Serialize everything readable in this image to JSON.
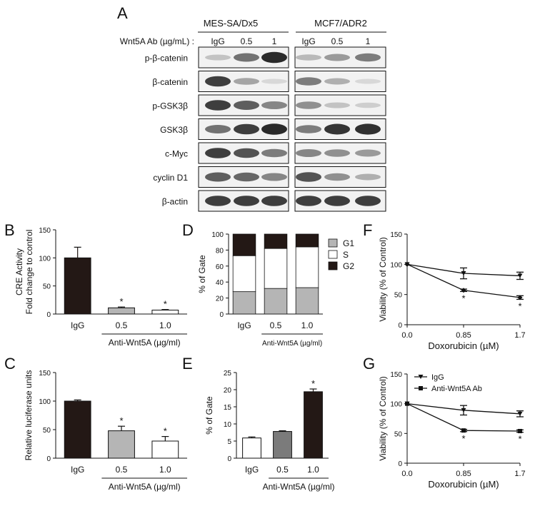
{
  "figure": {
    "panel_labels": {
      "A": "A",
      "B": "B",
      "C": "C",
      "D": "D",
      "E": "E",
      "F": "F",
      "G": "G"
    }
  },
  "western_blot": {
    "cell_lines": [
      "MES-SA/Dx5",
      "MCF7/ADR2"
    ],
    "treatment_label": "Wnt5A Ab (µg/mL) :",
    "lane_labels": [
      "IgG",
      "0.5",
      "1"
    ],
    "proteins": [
      "p-β-catenin",
      "β-catenin",
      "p-GSK3β",
      "GSK3β",
      "c-Myc",
      "cyclin D1",
      "β-actin"
    ],
    "band_intensity": {
      "MES-SA/Dx5": [
        [
          0.2,
          0.6,
          0.95
        ],
        [
          0.85,
          0.35,
          0.1
        ],
        [
          0.85,
          0.7,
          0.5
        ],
        [
          0.6,
          0.85,
          0.95
        ],
        [
          0.85,
          0.75,
          0.55
        ],
        [
          0.7,
          0.65,
          0.5
        ],
        [
          0.85,
          0.85,
          0.85
        ]
      ],
      "MCF7/ADR2": [
        [
          0.25,
          0.4,
          0.55
        ],
        [
          0.55,
          0.3,
          0.1
        ],
        [
          0.45,
          0.2,
          0.15
        ],
        [
          0.55,
          0.9,
          0.92
        ],
        [
          0.5,
          0.45,
          0.4
        ],
        [
          0.75,
          0.45,
          0.3
        ],
        [
          0.85,
          0.85,
          0.85
        ]
      ]
    }
  },
  "chart_data": [
    {
      "panel": "B",
      "type": "bar",
      "categories": [
        "IgG",
        "0.5",
        "1.0"
      ],
      "values": [
        100,
        11,
        7
      ],
      "errors": [
        19,
        1.5,
        1
      ],
      "significant": [
        false,
        true,
        true
      ],
      "bar_colors": [
        "#231815",
        "#b5b5b5",
        "#ffffff"
      ],
      "ylabel": "CRE Activity\nFold change to control",
      "group_label": "Anti-Wnt5A (µg/ml)",
      "ylim": [
        0,
        150
      ],
      "yticks": [
        0,
        50,
        100,
        150
      ]
    },
    {
      "panel": "C",
      "type": "bar",
      "categories": [
        "IgG",
        "0.5",
        "1.0"
      ],
      "values": [
        100,
        48,
        30
      ],
      "errors": [
        2,
        8,
        8
      ],
      "significant": [
        false,
        true,
        true
      ],
      "bar_colors": [
        "#231815",
        "#b5b5b5",
        "#ffffff"
      ],
      "ylabel": "Relative luciferase units",
      "group_label": "Anti-Wnt5A (µg/ml)",
      "ylim": [
        0,
        150
      ],
      "yticks": [
        0,
        50,
        100,
        150
      ]
    },
    {
      "panel": "D",
      "type": "bar",
      "stacked": true,
      "categories": [
        "IgG",
        "0.5",
        "1.0"
      ],
      "series": [
        {
          "name": "G1",
          "values": [
            28,
            32,
            33
          ],
          "color": "#b5b5b5"
        },
        {
          "name": "S",
          "values": [
            45,
            50,
            51
          ],
          "color": "#ffffff"
        },
        {
          "name": "G2",
          "values": [
            27,
            18,
            16
          ],
          "color": "#231815"
        }
      ],
      "ylabel": "% of Gate",
      "group_label": "Anti-Wnt5A (µg/ml)",
      "ylim": [
        0,
        100
      ],
      "yticks": [
        0,
        20,
        40,
        60,
        80,
        100
      ],
      "legend_position": "right"
    },
    {
      "panel": "E",
      "type": "bar",
      "categories": [
        "IgG",
        "0.5",
        "1.0"
      ],
      "values": [
        5.9,
        7.8,
        19.4
      ],
      "errors": [
        0.3,
        0.2,
        0.8
      ],
      "significant": [
        false,
        false,
        true
      ],
      "bar_colors": [
        "#ffffff",
        "#7b7b7b",
        "#231815"
      ],
      "ylabel": "% of Gate",
      "group_label": "Anti-Wnt5A (µg/ml)",
      "ylim": [
        0,
        25
      ],
      "yticks": [
        0,
        5,
        10,
        15,
        20,
        25
      ]
    },
    {
      "panel": "F",
      "type": "line",
      "x": [
        0.0,
        0.85,
        1.7
      ],
      "xticks": [
        "0.0",
        "0.85",
        "1.7"
      ],
      "series": [
        {
          "name": "",
          "values": [
            100,
            85,
            81
          ],
          "errors": [
            0,
            9,
            6
          ],
          "marker": "triangle"
        },
        {
          "name": "",
          "values": [
            100,
            57,
            45
          ],
          "errors": [
            0,
            2,
            3
          ],
          "marker": "diamond",
          "significant": [
            false,
            true,
            true
          ]
        }
      ],
      "xlabel": "Doxorubicin (µM)",
      "ylabel": "Viability (% of Control)",
      "ylim": [
        0,
        150
      ],
      "yticks": [
        0,
        50,
        100,
        150
      ]
    },
    {
      "panel": "G",
      "type": "line",
      "x": [
        0.0,
        0.85,
        1.7
      ],
      "xticks": [
        "0.0",
        "0.85",
        "1.7"
      ],
      "series": [
        {
          "name": "IgG",
          "values": [
            100,
            89,
            83
          ],
          "errors": [
            0,
            8,
            5
          ],
          "marker": "triangle"
        },
        {
          "name": "Anti-Wnt5A Ab",
          "values": [
            100,
            55,
            54
          ],
          "errors": [
            0,
            2,
            2
          ],
          "marker": "square",
          "significant": [
            false,
            true,
            true
          ]
        }
      ],
      "xlabel": "Doxorubicin (µM)",
      "ylabel": "Viability (% of Control)",
      "ylim": [
        0,
        150
      ],
      "yticks": [
        0,
        50,
        100,
        150
      ],
      "legend_position": "top-left"
    }
  ]
}
